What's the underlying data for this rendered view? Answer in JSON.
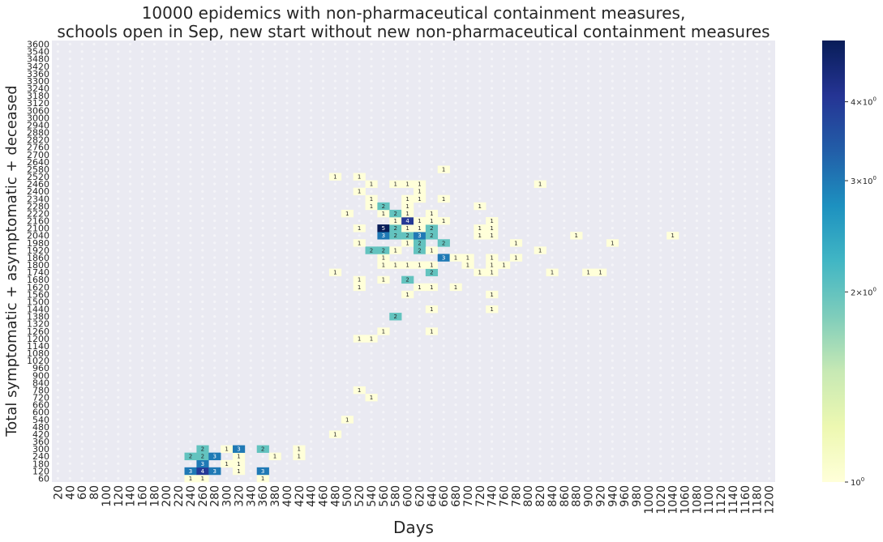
{
  "chart_data": {
    "type": "heatmap",
    "title_lines": [
      "10000 epidemics with non-pharmaceutical containment measures,",
      "schools open in Sep, new start without new non-pharmaceutical containment measures"
    ],
    "xlabel": "Days",
    "ylabel": "Total symptomatic + asymptomatic + deceased",
    "x_categories": [
      20,
      40,
      60,
      80,
      100,
      120,
      140,
      160,
      180,
      200,
      220,
      240,
      260,
      280,
      300,
      320,
      340,
      360,
      380,
      400,
      420,
      440,
      460,
      480,
      500,
      520,
      540,
      560,
      580,
      600,
      620,
      640,
      660,
      680,
      700,
      720,
      740,
      760,
      780,
      800,
      820,
      840,
      860,
      880,
      900,
      920,
      940,
      960,
      980,
      1000,
      1020,
      1040,
      1060,
      1080,
      1100,
      1120,
      1140,
      1160,
      1180,
      1200
    ],
    "y_categories": [
      60,
      120,
      180,
      240,
      300,
      360,
      420,
      480,
      540,
      600,
      660,
      720,
      780,
      840,
      900,
      960,
      1020,
      1080,
      1140,
      1200,
      1260,
      1320,
      1380,
      1440,
      1500,
      1560,
      1620,
      1680,
      1740,
      1800,
      1860,
      1920,
      1980,
      2040,
      2100,
      2160,
      2220,
      2280,
      2340,
      2400,
      2460,
      2520,
      2580,
      2640,
      2700,
      2760,
      2820,
      2880,
      2940,
      3000,
      3060,
      3120,
      3180,
      3240,
      3300,
      3360,
      3420,
      3480,
      3540,
      3600
    ],
    "color_scale": "log",
    "cmap": "YlGnBu",
    "vmin": 1,
    "vmax": 5,
    "colorbar_ticks": [
      {
        "value": 1,
        "label": "10^0"
      },
      {
        "value": 2,
        "label": "2×10^0"
      },
      {
        "value": 3,
        "label": "3×10^0"
      },
      {
        "value": 4,
        "label": "4×10^0"
      }
    ],
    "background_color": "#eaeaf2",
    "cells": [
      {
        "x": 240,
        "y": 60,
        "v": 1
      },
      {
        "x": 260,
        "y": 60,
        "v": 1
      },
      {
        "x": 360,
        "y": 60,
        "v": 1
      },
      {
        "x": 240,
        "y": 120,
        "v": 3
      },
      {
        "x": 260,
        "y": 120,
        "v": 4
      },
      {
        "x": 280,
        "y": 120,
        "v": 3
      },
      {
        "x": 320,
        "y": 120,
        "v": 1
      },
      {
        "x": 360,
        "y": 120,
        "v": 3
      },
      {
        "x": 260,
        "y": 180,
        "v": 3
      },
      {
        "x": 300,
        "y": 180,
        "v": 1
      },
      {
        "x": 320,
        "y": 180,
        "v": 1
      },
      {
        "x": 240,
        "y": 240,
        "v": 2
      },
      {
        "x": 260,
        "y": 240,
        "v": 2
      },
      {
        "x": 280,
        "y": 240,
        "v": 3
      },
      {
        "x": 320,
        "y": 240,
        "v": 1
      },
      {
        "x": 380,
        "y": 240,
        "v": 1
      },
      {
        "x": 420,
        "y": 240,
        "v": 1
      },
      {
        "x": 260,
        "y": 300,
        "v": 2
      },
      {
        "x": 300,
        "y": 300,
        "v": 1
      },
      {
        "x": 320,
        "y": 300,
        "v": 3
      },
      {
        "x": 360,
        "y": 300,
        "v": 2
      },
      {
        "x": 420,
        "y": 300,
        "v": 1
      },
      {
        "x": 480,
        "y": 420,
        "v": 1
      },
      {
        "x": 500,
        "y": 540,
        "v": 1
      },
      {
        "x": 540,
        "y": 720,
        "v": 1
      },
      {
        "x": 520,
        "y": 780,
        "v": 1
      },
      {
        "x": 520,
        "y": 1200,
        "v": 1
      },
      {
        "x": 540,
        "y": 1200,
        "v": 1
      },
      {
        "x": 560,
        "y": 1260,
        "v": 1
      },
      {
        "x": 640,
        "y": 1260,
        "v": 1
      },
      {
        "x": 580,
        "y": 1380,
        "v": 2
      },
      {
        "x": 640,
        "y": 1440,
        "v": 1
      },
      {
        "x": 740,
        "y": 1440,
        "v": 1
      },
      {
        "x": 600,
        "y": 1560,
        "v": 1
      },
      {
        "x": 740,
        "y": 1560,
        "v": 1
      },
      {
        "x": 520,
        "y": 1620,
        "v": 1
      },
      {
        "x": 620,
        "y": 1620,
        "v": 1
      },
      {
        "x": 640,
        "y": 1620,
        "v": 1
      },
      {
        "x": 680,
        "y": 1620,
        "v": 1
      },
      {
        "x": 520,
        "y": 1680,
        "v": 1
      },
      {
        "x": 560,
        "y": 1680,
        "v": 1
      },
      {
        "x": 600,
        "y": 1680,
        "v": 2
      },
      {
        "x": 480,
        "y": 1740,
        "v": 1
      },
      {
        "x": 640,
        "y": 1740,
        "v": 2
      },
      {
        "x": 720,
        "y": 1740,
        "v": 1
      },
      {
        "x": 740,
        "y": 1740,
        "v": 1
      },
      {
        "x": 840,
        "y": 1740,
        "v": 1
      },
      {
        "x": 900,
        "y": 1740,
        "v": 1
      },
      {
        "x": 920,
        "y": 1740,
        "v": 1
      },
      {
        "x": 560,
        "y": 1800,
        "v": 1
      },
      {
        "x": 580,
        "y": 1800,
        "v": 1
      },
      {
        "x": 600,
        "y": 1800,
        "v": 1
      },
      {
        "x": 620,
        "y": 1800,
        "v": 1
      },
      {
        "x": 640,
        "y": 1800,
        "v": 1
      },
      {
        "x": 700,
        "y": 1800,
        "v": 1
      },
      {
        "x": 740,
        "y": 1800,
        "v": 1
      },
      {
        "x": 760,
        "y": 1800,
        "v": 1
      },
      {
        "x": 560,
        "y": 1860,
        "v": 1
      },
      {
        "x": 660,
        "y": 1860,
        "v": 3
      },
      {
        "x": 680,
        "y": 1860,
        "v": 1
      },
      {
        "x": 700,
        "y": 1860,
        "v": 1
      },
      {
        "x": 740,
        "y": 1860,
        "v": 1
      },
      {
        "x": 780,
        "y": 1860,
        "v": 1
      },
      {
        "x": 540,
        "y": 1920,
        "v": 2
      },
      {
        "x": 560,
        "y": 1920,
        "v": 2
      },
      {
        "x": 580,
        "y": 1920,
        "v": 1
      },
      {
        "x": 620,
        "y": 1920,
        "v": 2
      },
      {
        "x": 640,
        "y": 1920,
        "v": 1
      },
      {
        "x": 820,
        "y": 1920,
        "v": 1
      },
      {
        "x": 520,
        "y": 1980,
        "v": 1
      },
      {
        "x": 600,
        "y": 1980,
        "v": 1
      },
      {
        "x": 620,
        "y": 1980,
        "v": 2
      },
      {
        "x": 660,
        "y": 1980,
        "v": 2
      },
      {
        "x": 780,
        "y": 1980,
        "v": 1
      },
      {
        "x": 940,
        "y": 1980,
        "v": 1
      },
      {
        "x": 560,
        "y": 2040,
        "v": 3
      },
      {
        "x": 580,
        "y": 2040,
        "v": 2
      },
      {
        "x": 600,
        "y": 2040,
        "v": 2
      },
      {
        "x": 620,
        "y": 2040,
        "v": 3
      },
      {
        "x": 640,
        "y": 2040,
        "v": 2
      },
      {
        "x": 720,
        "y": 2040,
        "v": 1
      },
      {
        "x": 740,
        "y": 2040,
        "v": 1
      },
      {
        "x": 880,
        "y": 2040,
        "v": 1
      },
      {
        "x": 1040,
        "y": 2040,
        "v": 1
      },
      {
        "x": 520,
        "y": 2100,
        "v": 1
      },
      {
        "x": 560,
        "y": 2100,
        "v": 5
      },
      {
        "x": 580,
        "y": 2100,
        "v": 2
      },
      {
        "x": 600,
        "y": 2100,
        "v": 1
      },
      {
        "x": 620,
        "y": 2100,
        "v": 1
      },
      {
        "x": 640,
        "y": 2100,
        "v": 2
      },
      {
        "x": 720,
        "y": 2100,
        "v": 1
      },
      {
        "x": 740,
        "y": 2100,
        "v": 1
      },
      {
        "x": 580,
        "y": 2160,
        "v": 1
      },
      {
        "x": 600,
        "y": 2160,
        "v": 4
      },
      {
        "x": 620,
        "y": 2160,
        "v": 1
      },
      {
        "x": 640,
        "y": 2160,
        "v": 1
      },
      {
        "x": 660,
        "y": 2160,
        "v": 1
      },
      {
        "x": 740,
        "y": 2160,
        "v": 1
      },
      {
        "x": 500,
        "y": 2220,
        "v": 1
      },
      {
        "x": 560,
        "y": 2220,
        "v": 1
      },
      {
        "x": 580,
        "y": 2220,
        "v": 2
      },
      {
        "x": 600,
        "y": 2220,
        "v": 1
      },
      {
        "x": 640,
        "y": 2220,
        "v": 1
      },
      {
        "x": 540,
        "y": 2280,
        "v": 1
      },
      {
        "x": 560,
        "y": 2280,
        "v": 2
      },
      {
        "x": 600,
        "y": 2280,
        "v": 1
      },
      {
        "x": 720,
        "y": 2280,
        "v": 1
      },
      {
        "x": 540,
        "y": 2340,
        "v": 1
      },
      {
        "x": 600,
        "y": 2340,
        "v": 1
      },
      {
        "x": 620,
        "y": 2340,
        "v": 1
      },
      {
        "x": 660,
        "y": 2340,
        "v": 1
      },
      {
        "x": 520,
        "y": 2400,
        "v": 1
      },
      {
        "x": 620,
        "y": 2400,
        "v": 1
      },
      {
        "x": 540,
        "y": 2460,
        "v": 1
      },
      {
        "x": 580,
        "y": 2460,
        "v": 1
      },
      {
        "x": 600,
        "y": 2460,
        "v": 1
      },
      {
        "x": 620,
        "y": 2460,
        "v": 1
      },
      {
        "x": 820,
        "y": 2460,
        "v": 1
      },
      {
        "x": 480,
        "y": 2520,
        "v": 1
      },
      {
        "x": 520,
        "y": 2520,
        "v": 1
      },
      {
        "x": 660,
        "y": 2580,
        "v": 1
      }
    ]
  }
}
